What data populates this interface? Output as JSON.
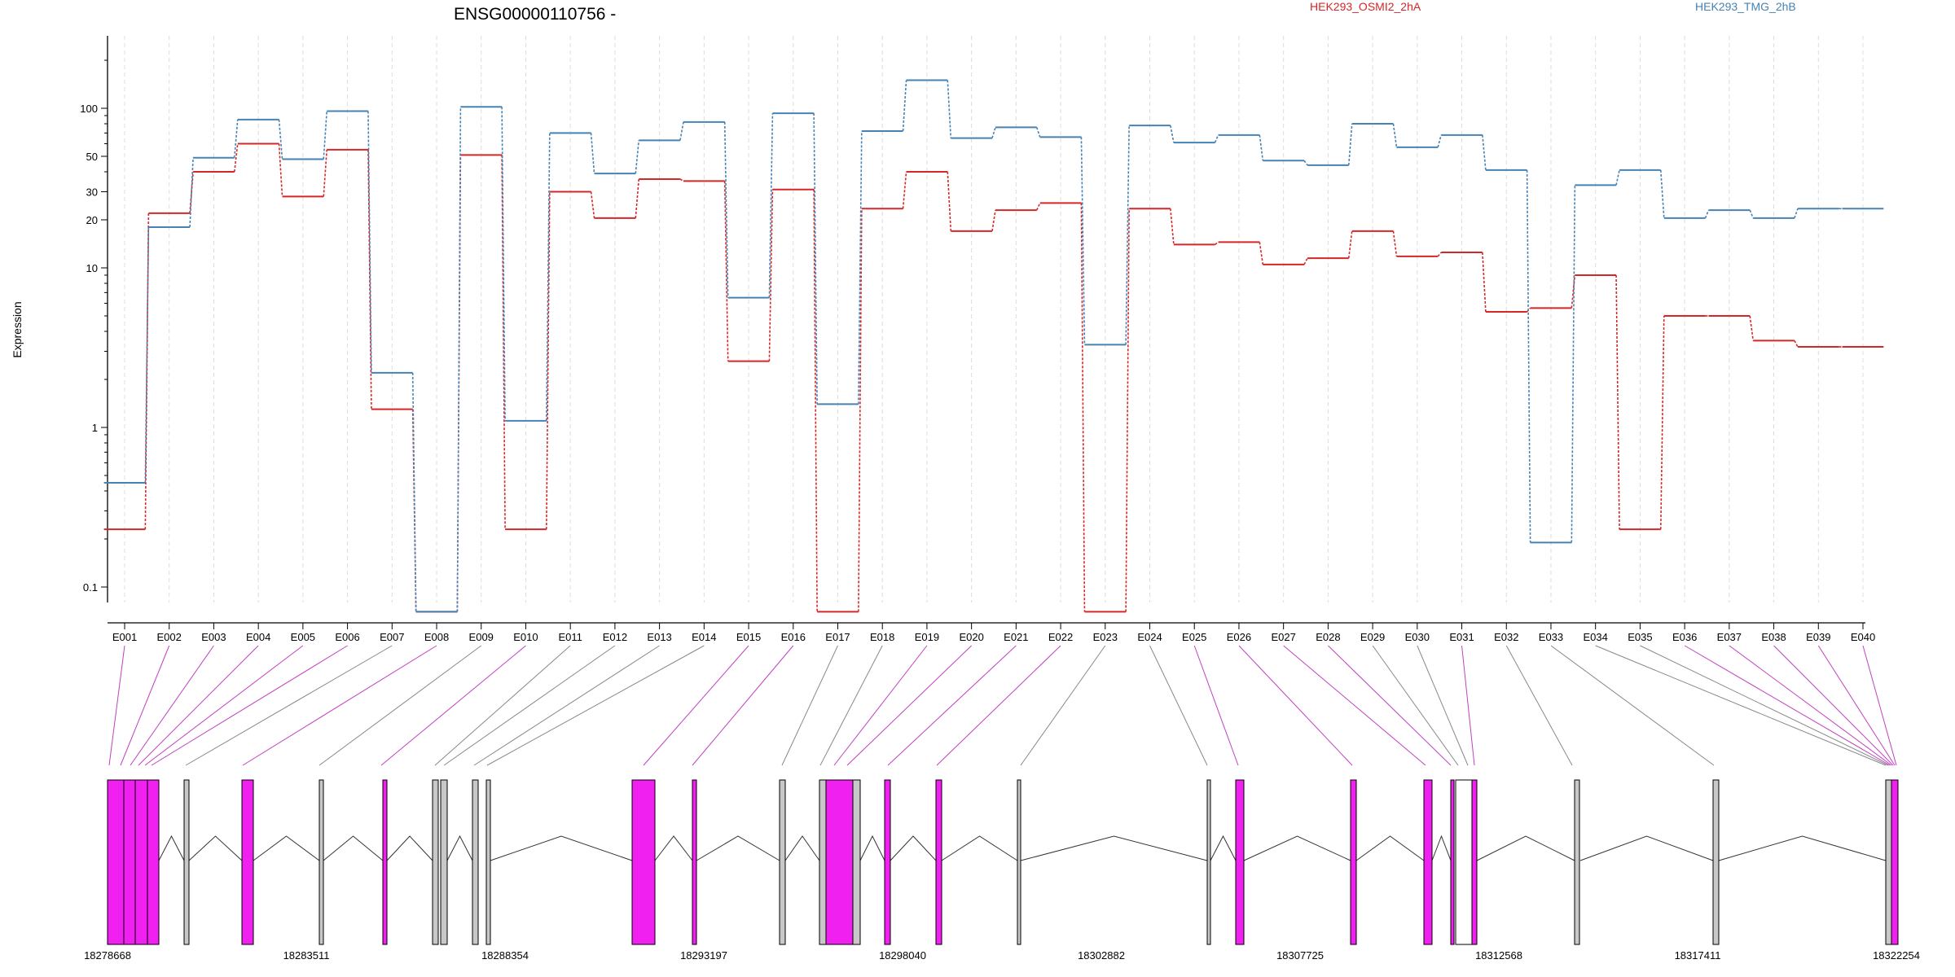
{
  "chart_data": {
    "type": "line",
    "title": "ENSG00000110756 -",
    "ylabel": "Expression",
    "yscale": "log",
    "ylim": [
      0.08,
      250
    ],
    "yticks": [
      0.1,
      1,
      10,
      20,
      30,
      50,
      100
    ],
    "ytick_labels": [
      "0.1",
      "1",
      "10",
      "20",
      "30",
      "50",
      "100"
    ],
    "grid": "vertical dashed per exon",
    "categories": [
      "E001",
      "E002",
      "E003",
      "E004",
      "E005",
      "E006",
      "E007",
      "E008",
      "E009",
      "E010",
      "E011",
      "E012",
      "E013",
      "E014",
      "E015",
      "E016",
      "E017",
      "E018",
      "E019",
      "E020",
      "E021",
      "E022",
      "E023",
      "E024",
      "E025",
      "E026",
      "E027",
      "E028",
      "E029",
      "E030",
      "E031",
      "E032",
      "E033",
      "E034",
      "E035",
      "E036",
      "E037",
      "E038",
      "E039",
      "E040"
    ],
    "series": [
      {
        "name": "HEK293_OSMI2_2hA",
        "color": "#d62728",
        "values": [
          0.23,
          22,
          40,
          60,
          28,
          55,
          1.3,
          0.07,
          51,
          0.23,
          30,
          20.5,
          36,
          35,
          2.6,
          31,
          0.07,
          23.5,
          40,
          17,
          23,
          25.5,
          0.07,
          23.5,
          14,
          14.5,
          10.5,
          11.5,
          17,
          11.8,
          12.5,
          5.3,
          5.6,
          9,
          0.23,
          5,
          5,
          3.5,
          3.2,
          3.2
        ]
      },
      {
        "name": "HEK293_TMG_2hB",
        "color": "#4682b4",
        "values": [
          0.45,
          18,
          49,
          85,
          48,
          96,
          2.2,
          0.07,
          102,
          1.1,
          70,
          39,
          63,
          82,
          6.5,
          93,
          1.4,
          72,
          150,
          65,
          76,
          66,
          3.3,
          78,
          61,
          68,
          47,
          44,
          80,
          57,
          68,
          41,
          0.19,
          33,
          41,
          20.5,
          23,
          20.5,
          23.5,
          23.5
        ]
      }
    ],
    "gene_model": {
      "coordinate_labels": [
        "18278668",
        "18283511",
        "18288354",
        "18293197",
        "18298040",
        "18302882",
        "18307725",
        "18312568",
        "18317411",
        "18322254"
      ],
      "highlight_color": "#f020f0",
      "exon_color": "#c8c8c8"
    }
  }
}
